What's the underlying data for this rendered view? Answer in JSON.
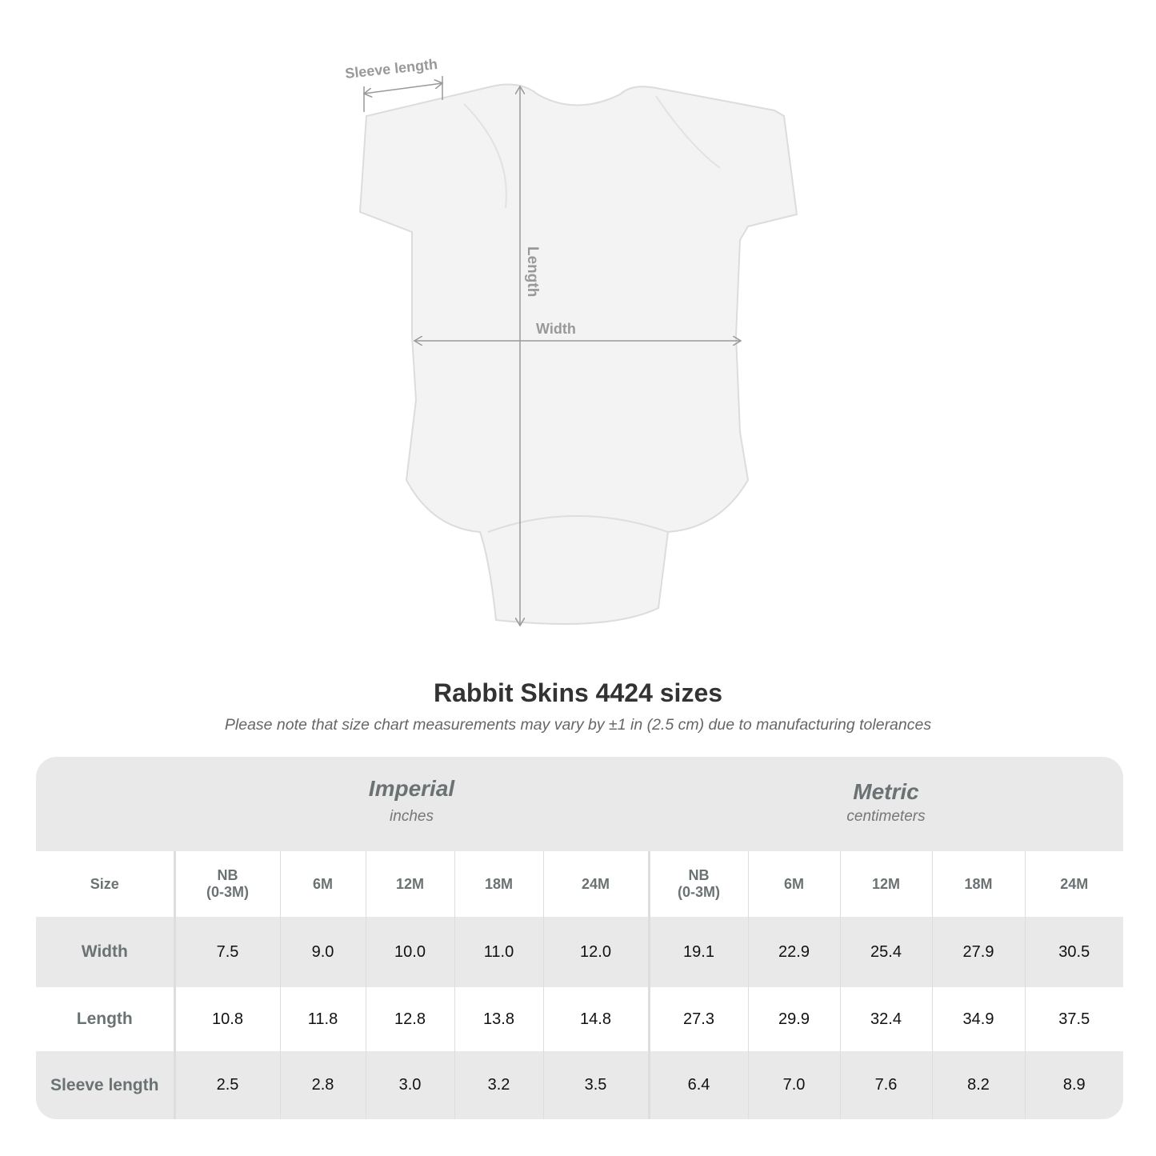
{
  "diagram": {
    "labels": {
      "sleeve": "Sleeve length",
      "length": "Length",
      "width": "Width"
    }
  },
  "header": {
    "title": "Rabbit Skins 4424 sizes",
    "note": "Please note that size chart measurements may vary by ±1 in (2.5 cm) due to manufacturing tolerances"
  },
  "table": {
    "imperial": {
      "system": "Imperial",
      "unit": "inches"
    },
    "metric": {
      "system": "Metric",
      "unit": "centimeters"
    },
    "size_label": "Size",
    "sizes": [
      "NB\n(0-3M)",
      "6M",
      "12M",
      "18M",
      "24M"
    ],
    "rows": [
      {
        "label": "Width",
        "imperial": [
          "7.5",
          "9.0",
          "10.0",
          "11.0",
          "12.0"
        ],
        "metric": [
          "19.1",
          "22.9",
          "25.4",
          "27.9",
          "30.5"
        ]
      },
      {
        "label": "Length",
        "imperial": [
          "10.8",
          "11.8",
          "12.8",
          "13.8",
          "14.8"
        ],
        "metric": [
          "27.3",
          "29.9",
          "32.4",
          "34.9",
          "37.5"
        ]
      },
      {
        "label": "Sleeve length",
        "imperial": [
          "2.5",
          "2.8",
          "3.0",
          "3.2",
          "3.5"
        ],
        "metric": [
          "6.4",
          "7.0",
          "7.6",
          "8.2",
          "8.9"
        ]
      }
    ]
  }
}
